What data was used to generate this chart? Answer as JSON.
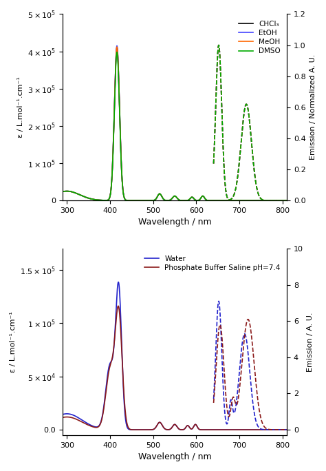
{
  "top": {
    "xlim": [
      290,
      810
    ],
    "ylim_left": [
      0,
      500000.0
    ],
    "ylim_right": [
      0,
      1.2
    ],
    "yticks_left": [
      0,
      100000.0,
      200000.0,
      300000.0,
      400000.0,
      500000.0
    ],
    "yticks_right": [
      0.0,
      0.2,
      0.4,
      0.6,
      0.8,
      1.0,
      1.2
    ],
    "xlabel": "Wavelength / nm",
    "ylabel_left": "ε / L.mol⁻¹.cm⁻¹",
    "ylabel_right": "Emission / Normalized A. U.",
    "legend": [
      "CHCl₃",
      "EtOH",
      "MeOH",
      "DMSO"
    ],
    "colors": [
      "#000000",
      "#4444ff",
      "#ff6600",
      "#00aa00"
    ]
  },
  "bottom": {
    "xlim": [
      290,
      810
    ],
    "ylim_left": [
      -5000,
      170000.0
    ],
    "ylim_right": [
      -0.3,
      10
    ],
    "yticks_left": [
      0.0,
      50000.0,
      100000.0,
      150000.0
    ],
    "yticks_right": [
      0,
      2,
      4,
      6,
      8,
      10
    ],
    "xlabel": "Wavelength / nm",
    "ylabel_left": "ε / L.mol⁻¹.cm⁻¹",
    "ylabel_right": "Emission / A. U.",
    "legend": [
      "Water",
      "Phosphate Buffer Saline pH=7.4"
    ],
    "colors": [
      "#2222cc",
      "#8b1a1a"
    ]
  }
}
